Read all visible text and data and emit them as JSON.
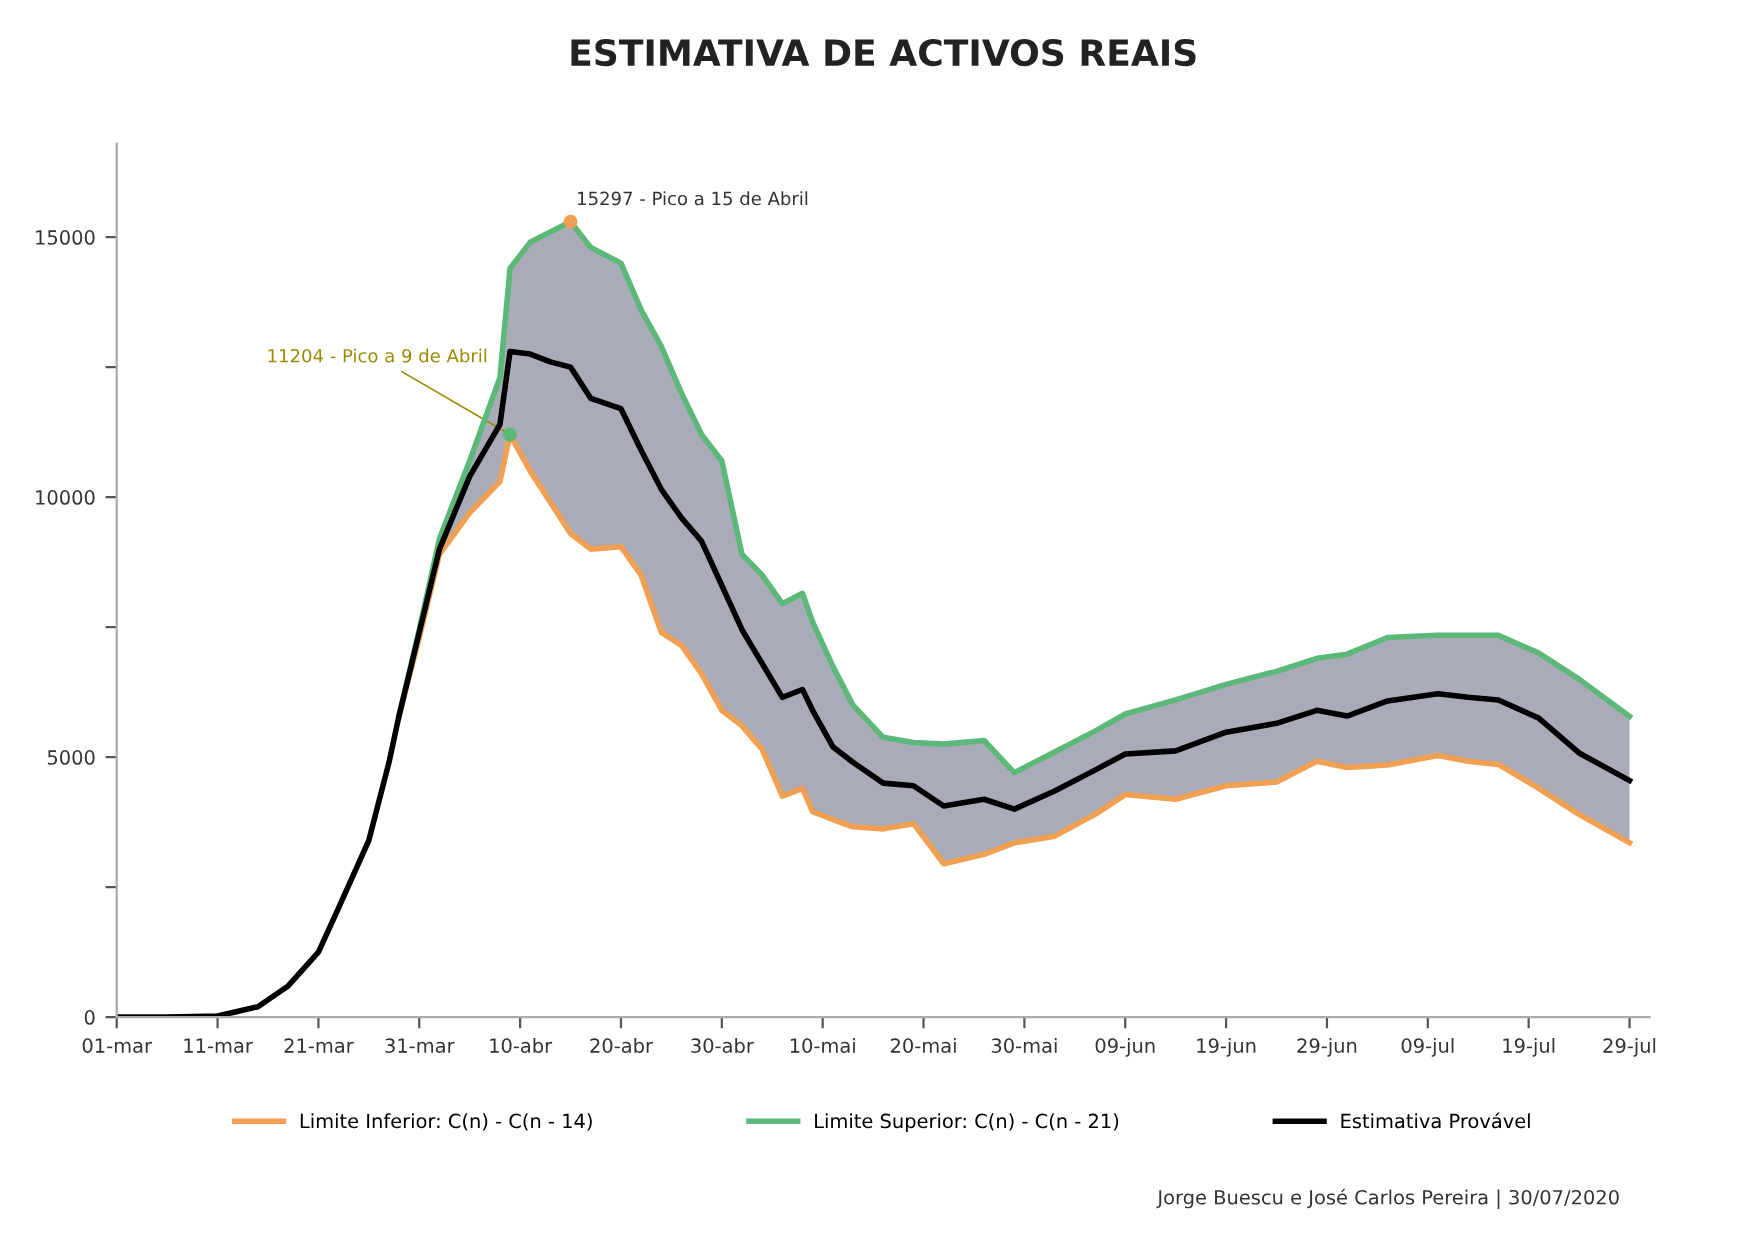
{
  "chart_data": {
    "type": "line",
    "title": "ESTIMATIVA DE ACTIVOS REAIS",
    "x": [
      "2020-03-01",
      "2020-03-06",
      "2020-03-11",
      "2020-03-15",
      "2020-03-18",
      "2020-03-21",
      "2020-03-23",
      "2020-03-26",
      "2020-03-28",
      "2020-03-29",
      "2020-03-31",
      "2020-04-02",
      "2020-04-05",
      "2020-04-08",
      "2020-04-09",
      "2020-04-11",
      "2020-04-13",
      "2020-04-15",
      "2020-04-17",
      "2020-04-20",
      "2020-04-22",
      "2020-04-24",
      "2020-04-26",
      "2020-04-28",
      "2020-04-30",
      "2020-05-02",
      "2020-05-04",
      "2020-05-06",
      "2020-05-08",
      "2020-05-09",
      "2020-05-11",
      "2020-05-13",
      "2020-05-16",
      "2020-05-19",
      "2020-05-22",
      "2020-05-26",
      "2020-05-29",
      "2020-06-02",
      "2020-06-06",
      "2020-06-09",
      "2020-06-14",
      "2020-06-19",
      "2020-06-24",
      "2020-06-28",
      "2020-07-01",
      "2020-07-05",
      "2020-07-10",
      "2020-07-13",
      "2020-07-16",
      "2020-07-20",
      "2020-07-24",
      "2020-07-29"
    ],
    "series": [
      {
        "name": "Limite Inferior: C(n) - C(n - 14)",
        "color": "#f0a050",
        "values": [
          null,
          null,
          null,
          null,
          null,
          null,
          null,
          null,
          null,
          5800,
          7300,
          8900,
          9700,
          10300,
          11204,
          10500,
          9900,
          9300,
          9000,
          9045,
          8500,
          7400,
          7150,
          6600,
          5900,
          5600,
          5150,
          4250,
          4400,
          3950,
          3800,
          3660,
          3620,
          3720,
          2950,
          3130,
          3350,
          3480,
          3900,
          4280,
          4190,
          4450,
          4520,
          4920,
          4800,
          4850,
          5030,
          4920,
          4860,
          4400,
          3900,
          3352
        ]
      },
      {
        "name": "Limite Superior: C(n) - C(n - 21)",
        "color": "#5cb878",
        "values": [
          null,
          null,
          null,
          null,
          null,
          null,
          null,
          null,
          null,
          5800,
          7450,
          9200,
          10700,
          12300,
          14400,
          14900,
          15100,
          15297,
          14800,
          14500,
          13600,
          12900,
          12000,
          11200,
          10700,
          8900,
          8500,
          7950,
          8150,
          7600,
          6750,
          6000,
          5380,
          5280,
          5250,
          5320,
          4700,
          5100,
          5500,
          5830,
          6100,
          6400,
          6650,
          6900,
          6980,
          7300,
          7342,
          7342,
          7342,
          7000,
          6500,
          5786
        ]
      },
      {
        "name": "Estimativa Provável",
        "color": "#000000",
        "values": [
          0,
          0,
          20,
          200,
          600,
          1250,
          2100,
          3400,
          4900,
          5800,
          7400,
          9000,
          10400,
          11400,
          12800,
          12750,
          12600,
          12500,
          11900,
          11700,
          10900,
          10150,
          9600,
          9150,
          8300,
          7450,
          6800,
          6150,
          6300,
          5900,
          5200,
          4900,
          4500,
          4450,
          4060,
          4190,
          4000,
          4350,
          4750,
          5060,
          5120,
          5480,
          5650,
          5900,
          5790,
          6080,
          6220,
          6150,
          6100,
          5750,
          5080,
          4549
        ],
        "lower": [
          null,
          null,
          null,
          null,
          null,
          null,
          null,
          null,
          null,
          5800,
          7300,
          8900,
          9700,
          10300,
          11204,
          10500,
          9900,
          9300,
          9000,
          9045,
          8500,
          7400,
          7150,
          6600,
          5900,
          5600,
          5150,
          4250,
          4400,
          3950,
          3800,
          3660,
          3620,
          3720,
          2950,
          3130,
          3350,
          3480,
          3900,
          4280,
          4190,
          4450,
          4520,
          4920,
          4800,
          4850,
          5030,
          4920,
          4860,
          4400,
          3900,
          3352
        ],
        "upper": [
          null,
          null,
          null,
          null,
          null,
          null,
          null,
          null,
          null,
          5800,
          7450,
          9200,
          10700,
          12300,
          14400,
          14900,
          15100,
          15297,
          14800,
          14500,
          13600,
          12900,
          12000,
          11200,
          10700,
          8900,
          8500,
          7950,
          8150,
          7600,
          6750,
          6000,
          5380,
          5280,
          5250,
          5320,
          4700,
          5100,
          5500,
          5830,
          6100,
          6400,
          6650,
          6900,
          6980,
          7300,
          7342,
          7342,
          7342,
          7000,
          6500,
          5786
        ]
      }
    ],
    "xlim": [
      "2020-03-01",
      "2020-07-31"
    ],
    "xticks": [
      {
        "value": "2020-03-01",
        "label": "01-mar"
      },
      {
        "value": "2020-03-11",
        "label": "11-mar"
      },
      {
        "value": "2020-03-21",
        "label": "21-mar"
      },
      {
        "value": "2020-03-31",
        "label": "31-mar"
      },
      {
        "value": "2020-04-10",
        "label": "10-abr"
      },
      {
        "value": "2020-04-20",
        "label": "20-abr"
      },
      {
        "value": "2020-04-30",
        "label": "30-abr"
      },
      {
        "value": "2020-05-10",
        "label": "10-mai"
      },
      {
        "value": "2020-05-20",
        "label": "20-mai"
      },
      {
        "value": "2020-05-30",
        "label": "30-mai"
      },
      {
        "value": "2020-06-09",
        "label": "09-jun"
      },
      {
        "value": "2020-06-19",
        "label": "19-jun"
      },
      {
        "value": "2020-06-29",
        "label": "29-jun"
      },
      {
        "value": "2020-07-09",
        "label": "09-jul"
      },
      {
        "value": "2020-07-19",
        "label": "19-jul"
      },
      {
        "value": "2020-07-29",
        "label": "29-jul"
      }
    ],
    "ylim": [
      0,
      16800
    ],
    "yticks": [
      0,
      {
        "value": 2500,
        "label": null
      },
      5000,
      {
        "value": 7500,
        "label": null
      },
      10000,
      {
        "value": 12500,
        "label": null
      },
      15000
    ],
    "annotations": [
      {
        "text": "15297 - Pico a 15 de Abril",
        "x": "2020-04-15",
        "y": 15297
      },
      {
        "text": "11204 - Pico a 9 de Abril",
        "x": "2020-04-09",
        "y": 11204
      },
      "Jorge Buescu e José Carlos Pereira | 30/07/2020"
    ],
    "legend": "bottom",
    "grid": false
  }
}
